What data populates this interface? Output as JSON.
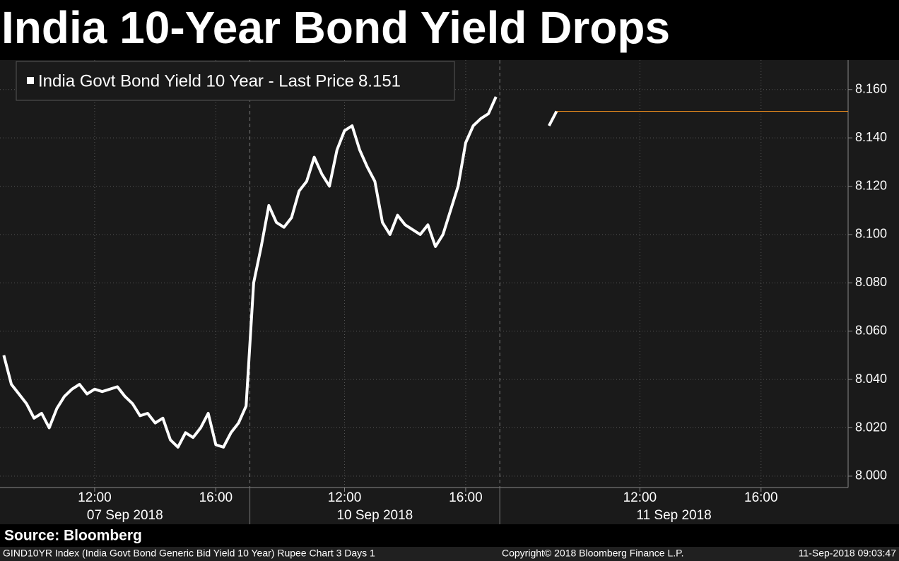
{
  "chart_data": {
    "type": "line",
    "title": "India 10-Year Bond Yield Drops",
    "source": "Source: Bloomberg",
    "footer": {
      "ticker": "GIND10YR Index (India Govt Bond Generic Bid Yield 10 Year) Rupee Chart 3 Days 1",
      "copyright": "Copyright© 2018 Bloomberg Finance L.P.",
      "timestamp": "11-Sep-2018 09:03:47"
    },
    "days": [
      {
        "label": "07 Sep 2018",
        "categories": [
          null,
          null,
          null,
          null,
          null,
          null,
          null,
          null,
          null,
          null,
          null,
          null,
          "12:00",
          null,
          null,
          null,
          null,
          null,
          null,
          null,
          null,
          null,
          null,
          null,
          null,
          null,
          null,
          null,
          "16:00",
          null,
          null,
          null,
          null
        ]
      },
      {
        "label": "10 Sep 2018",
        "categories": [
          null,
          null,
          null,
          null,
          null,
          null,
          null,
          null,
          null,
          null,
          null,
          null,
          "12:00",
          null,
          null,
          null,
          null,
          null,
          null,
          null,
          null,
          null,
          null,
          null,
          null,
          null,
          null,
          null,
          "16:00",
          null,
          null,
          null,
          null
        ]
      },
      {
        "label": "11 Sep 2018",
        "categories": [
          null,
          null,
          null,
          null,
          null,
          null,
          null,
          null,
          null,
          null,
          null,
          null,
          null,
          null,
          null,
          null,
          null,
          null,
          "12:00",
          null,
          null,
          null,
          null,
          null,
          null,
          null,
          null,
          null,
          null,
          null,
          null,
          null,
          null,
          null,
          "16:00",
          null,
          null,
          null,
          null,
          null,
          null,
          null,
          null,
          null,
          null,
          null
        ]
      }
    ],
    "series": [
      {
        "name": "India Govt Bond Yield 10 Year - Last Price",
        "last_price": 8.151,
        "color": "#ffffff",
        "last_price_color": "#f7931e",
        "values": [
          8.05,
          8.038,
          8.034,
          8.03,
          8.024,
          8.026,
          8.02,
          8.028,
          8.033,
          8.036,
          8.038,
          8.034,
          8.036,
          8.035,
          8.036,
          8.037,
          8.033,
          8.03,
          8.025,
          8.026,
          8.022,
          8.024,
          8.015,
          8.012,
          8.018,
          8.016,
          8.02,
          8.026,
          8.013,
          8.012,
          8.018,
          8.022,
          8.029,
          8.08,
          8.095,
          8.112,
          8.105,
          8.103,
          8.107,
          8.118,
          8.122,
          8.132,
          8.125,
          8.12,
          8.135,
          8.143,
          8.145,
          8.135,
          8.128,
          8.122,
          8.105,
          8.1,
          8.108,
          8.104,
          8.102,
          8.1,
          8.104,
          8.095,
          8.1,
          8.11,
          8.12,
          8.138,
          8.145,
          8.148,
          8.15,
          8.157,
          null,
          null,
          null,
          null,
          null,
          null,
          8.145,
          8.151,
          null,
          null,
          null,
          null,
          null,
          null,
          null,
          null,
          null,
          null,
          null,
          null,
          null,
          null,
          null,
          null,
          null,
          null,
          null,
          null,
          null,
          null,
          null,
          null,
          null,
          null,
          null,
          null,
          null,
          null,
          null,
          null,
          null,
          null
        ]
      }
    ],
    "ylim": [
      7.9953,
      8.1722
    ],
    "yticks": [
      {
        "value": 8.0,
        "label": "8.000"
      },
      {
        "value": 8.02,
        "label": "8.020"
      },
      {
        "value": 8.04,
        "label": "8.040"
      },
      {
        "value": 8.06,
        "label": "8.060"
      },
      {
        "value": 8.08,
        "label": "8.080"
      },
      {
        "value": 8.1,
        "label": "8.100"
      },
      {
        "value": 8.12,
        "label": "8.120"
      },
      {
        "value": 8.14,
        "label": "8.140"
      },
      {
        "value": 8.16,
        "label": "8.160"
      }
    ],
    "grid": true
  }
}
